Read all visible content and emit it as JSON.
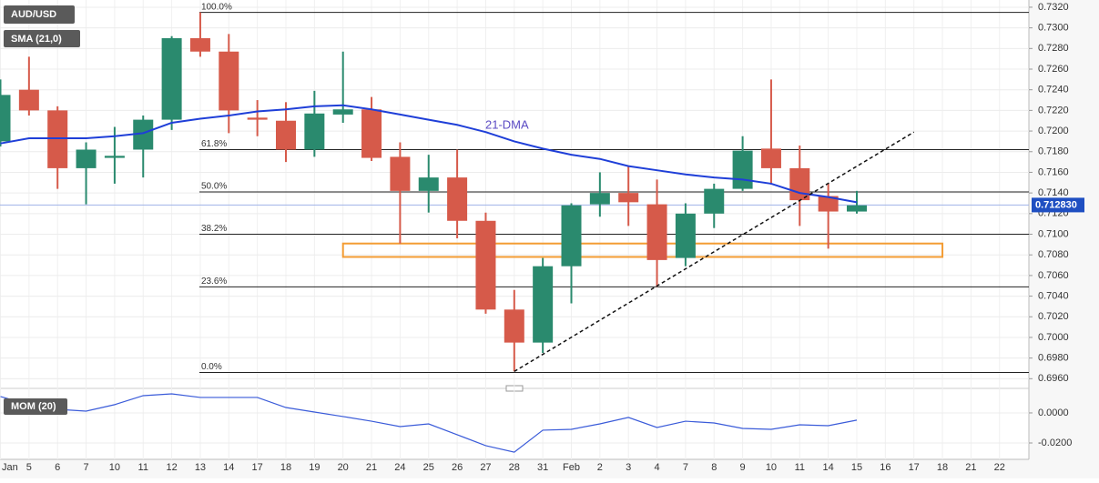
{
  "chart_data": [
    {
      "type": "candlestick",
      "title": "AUD/USD",
      "categories": [
        "Jan",
        "5",
        "6",
        "7",
        "10",
        "11",
        "12",
        "13",
        "14",
        "17",
        "18",
        "19",
        "20",
        "21",
        "24",
        "25",
        "26",
        "27",
        "28",
        "31",
        "Feb",
        "2",
        "3",
        "4",
        "7",
        "8",
        "9",
        "10",
        "11",
        "14",
        "15",
        "16",
        "17",
        "18",
        "21",
        "22"
      ],
      "open": [
        0.719,
        0.724,
        0.722,
        0.7164,
        0.7174,
        0.7182,
        0.7211,
        0.729,
        0.7277,
        0.7213,
        0.721,
        0.7182,
        0.7216,
        0.7221,
        0.7175,
        0.7142,
        0.7155,
        0.7113,
        0.7027,
        0.6995,
        0.7069,
        0.7129,
        0.714,
        0.7129,
        0.7077,
        0.712,
        0.7144,
        0.7183,
        0.7164,
        0.7137,
        0.7122,
        null,
        null,
        null,
        null,
        null
      ],
      "high": [
        0.725,
        0.7272,
        0.7224,
        0.7189,
        0.7204,
        0.7215,
        0.7292,
        0.7315,
        0.7294,
        0.723,
        0.7228,
        0.7239,
        0.7277,
        0.7233,
        0.7189,
        0.7177,
        0.7182,
        0.7121,
        0.7046,
        0.7077,
        0.713,
        0.716,
        0.7166,
        0.7153,
        0.713,
        0.7149,
        0.7195,
        0.725,
        0.7186,
        0.7149,
        0.7142,
        null,
        null,
        null,
        null,
        null
      ],
      "low": [
        0.7185,
        0.7215,
        0.7144,
        0.7129,
        0.7149,
        0.7155,
        0.7201,
        0.7272,
        0.7198,
        0.7195,
        0.717,
        0.7175,
        0.7208,
        0.7171,
        0.7091,
        0.7121,
        0.7096,
        0.7023,
        0.6967,
        0.6985,
        0.7033,
        0.7117,
        0.7108,
        0.7049,
        0.7069,
        0.7106,
        0.7142,
        0.7148,
        0.7108,
        0.7086,
        0.712,
        null,
        null,
        null,
        null,
        null
      ],
      "close": [
        0.7235,
        0.722,
        0.7164,
        0.7182,
        0.7176,
        0.7211,
        0.729,
        0.7277,
        0.722,
        0.7211,
        0.7182,
        0.7217,
        0.7221,
        0.7174,
        0.7142,
        0.7155,
        0.7113,
        0.7027,
        0.6995,
        0.7069,
        0.7128,
        0.714,
        0.7131,
        0.7075,
        0.712,
        0.7144,
        0.7181,
        0.7164,
        0.7133,
        0.7122,
        0.7128,
        null,
        null,
        null,
        null,
        null
      ],
      "up_color": "#2a8a6e",
      "down_color": "#d65a4a",
      "series": [
        {
          "name": "SMA (21,0)",
          "color": "#1f3fd8",
          "values": [
            0.7188,
            0.7193,
            0.7193,
            0.7193,
            0.7195,
            0.7198,
            0.7208,
            0.7212,
            0.7215,
            0.7219,
            0.7221,
            0.7224,
            0.7225,
            0.7221,
            0.7216,
            0.7211,
            0.7206,
            0.7199,
            0.719,
            0.7183,
            0.7177,
            0.7173,
            0.7166,
            0.7162,
            0.7158,
            0.7155,
            0.7153,
            0.7149,
            0.714,
            0.7136,
            0.7131,
            null,
            null,
            null,
            null,
            null
          ]
        }
      ],
      "annotation": "21-DMA",
      "fib_levels": [
        {
          "label": "100.0%",
          "value": 0.7315
        },
        {
          "label": "61.8%",
          "value": 0.7182
        },
        {
          "label": "50.0%",
          "value": 0.7141
        },
        {
          "label": "38.2%",
          "value": 0.71
        },
        {
          "label": "23.6%",
          "value": 0.7049
        },
        {
          "label": "0.0%",
          "value": 0.6966
        }
      ],
      "current_price": {
        "value": 0.71283,
        "label": "0.712830"
      },
      "zone": {
        "ylim": [
          0.7078,
          0.7091
        ],
        "color": "#f39c33"
      },
      "trendline": {
        "values": [
          0.6967,
          0.7199
        ]
      },
      "ylim": [
        0.6955,
        0.7327
      ],
      "yticks": [
        {
          "value": 0.696,
          "label": "0.6960"
        },
        {
          "value": 0.698,
          "label": "0.6980"
        },
        {
          "value": 0.7,
          "label": "0.7000"
        },
        {
          "value": 0.702,
          "label": "0.7020"
        },
        {
          "value": 0.704,
          "label": "0.7040"
        },
        {
          "value": 0.706,
          "label": "0.7060"
        },
        {
          "value": 0.708,
          "label": "0.7080"
        },
        {
          "value": 0.71,
          "label": "0.7100"
        },
        {
          "value": 0.712,
          "label": "0.7120"
        },
        {
          "value": 0.714,
          "label": "0.7140"
        },
        {
          "value": 0.716,
          "label": "0.7160"
        },
        {
          "value": 0.718,
          "label": "0.7180"
        },
        {
          "value": 0.72,
          "label": "0.7200"
        },
        {
          "value": 0.722,
          "label": "0.7220"
        },
        {
          "value": 0.724,
          "label": "0.7240"
        },
        {
          "value": 0.726,
          "label": "0.7260"
        },
        {
          "value": 0.728,
          "label": "0.7280"
        },
        {
          "value": 0.73,
          "label": "0.7300"
        },
        {
          "value": 0.732,
          "label": "0.7320"
        }
      ],
      "grid": true
    },
    {
      "type": "line",
      "series": [
        {
          "name": "MOM (20)",
          "color": "#3a5bd9",
          "values": [
            0.0109,
            0.0055,
            0.0024,
            0.0012,
            0.0055,
            0.0115,
            0.0127,
            0.0103,
            0.0103,
            0.0103,
            0.0036,
            0.0006,
            -0.0024,
            -0.0055,
            -0.0091,
            -0.0073,
            -0.0145,
            -0.0218,
            -0.0261,
            -0.0115,
            -0.0109,
            -0.0073,
            -0.003,
            -0.0097,
            -0.0055,
            -0.0067,
            -0.0103,
            -0.0109,
            -0.0079,
            -0.0085,
            -0.0048,
            null,
            null,
            null,
            null,
            null
          ]
        }
      ],
      "ylim": [
        -0.0309,
        0.0133
      ],
      "yticks": [
        {
          "value": 0,
          "label": "0.0000"
        },
        {
          "value": -0.02,
          "label": "-0.0200"
        }
      ],
      "grid": true
    }
  ]
}
